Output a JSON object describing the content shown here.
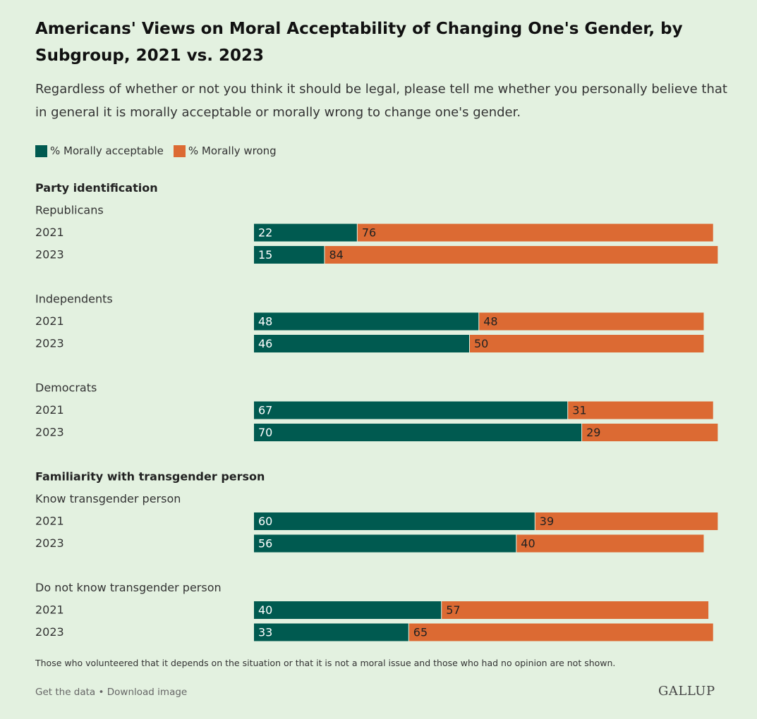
{
  "title": "Americans' Views on Moral Acceptability of Changing One's Gender, by Subgroup, 2021 vs. 2023",
  "subtitle": "Regardless of whether or not you think it should be legal, please tell me whether you personally believe that in general it is morally acceptable or morally wrong to change one's gender.",
  "colors": {
    "acceptable": "#005a50",
    "wrong": "#dc6a33"
  },
  "chart_data": {
    "type": "bar",
    "orientation": "horizontal",
    "stacked": true,
    "legend_placement": "top-left",
    "grid": false,
    "xlim": [
      0,
      100
    ],
    "series": [
      {
        "name": "% Morally acceptable",
        "color": "#005a50"
      },
      {
        "name": "% Morally wrong",
        "color": "#dc6a33"
      }
    ],
    "sections": [
      {
        "heading": "Party identification",
        "groups": [
          {
            "name": "Republicans",
            "rows": [
              {
                "year": "2021",
                "acceptable": 22,
                "wrong": 76
              },
              {
                "year": "2023",
                "acceptable": 15,
                "wrong": 84
              }
            ]
          },
          {
            "name": "Independents",
            "rows": [
              {
                "year": "2021",
                "acceptable": 48,
                "wrong": 48
              },
              {
                "year": "2023",
                "acceptable": 46,
                "wrong": 50
              }
            ]
          },
          {
            "name": "Democrats",
            "rows": [
              {
                "year": "2021",
                "acceptable": 67,
                "wrong": 31
              },
              {
                "year": "2023",
                "acceptable": 70,
                "wrong": 29
              }
            ]
          }
        ]
      },
      {
        "heading": "Familiarity with transgender person",
        "groups": [
          {
            "name": "Know transgender person",
            "rows": [
              {
                "year": "2021",
                "acceptable": 60,
                "wrong": 39
              },
              {
                "year": "2023",
                "acceptable": 56,
                "wrong": 40
              }
            ]
          },
          {
            "name": "Do not know transgender person",
            "rows": [
              {
                "year": "2021",
                "acceptable": 40,
                "wrong": 57
              },
              {
                "year": "2023",
                "acceptable": 33,
                "wrong": 65
              }
            ]
          }
        ]
      }
    ]
  },
  "note": "Those who volunteered that it depends on the situation or that it is not a moral issue and those who had no opinion are not shown.",
  "footer": {
    "get_data": "Get the data",
    "separator": " • ",
    "download": "Download image",
    "logo": "GALLUP"
  }
}
